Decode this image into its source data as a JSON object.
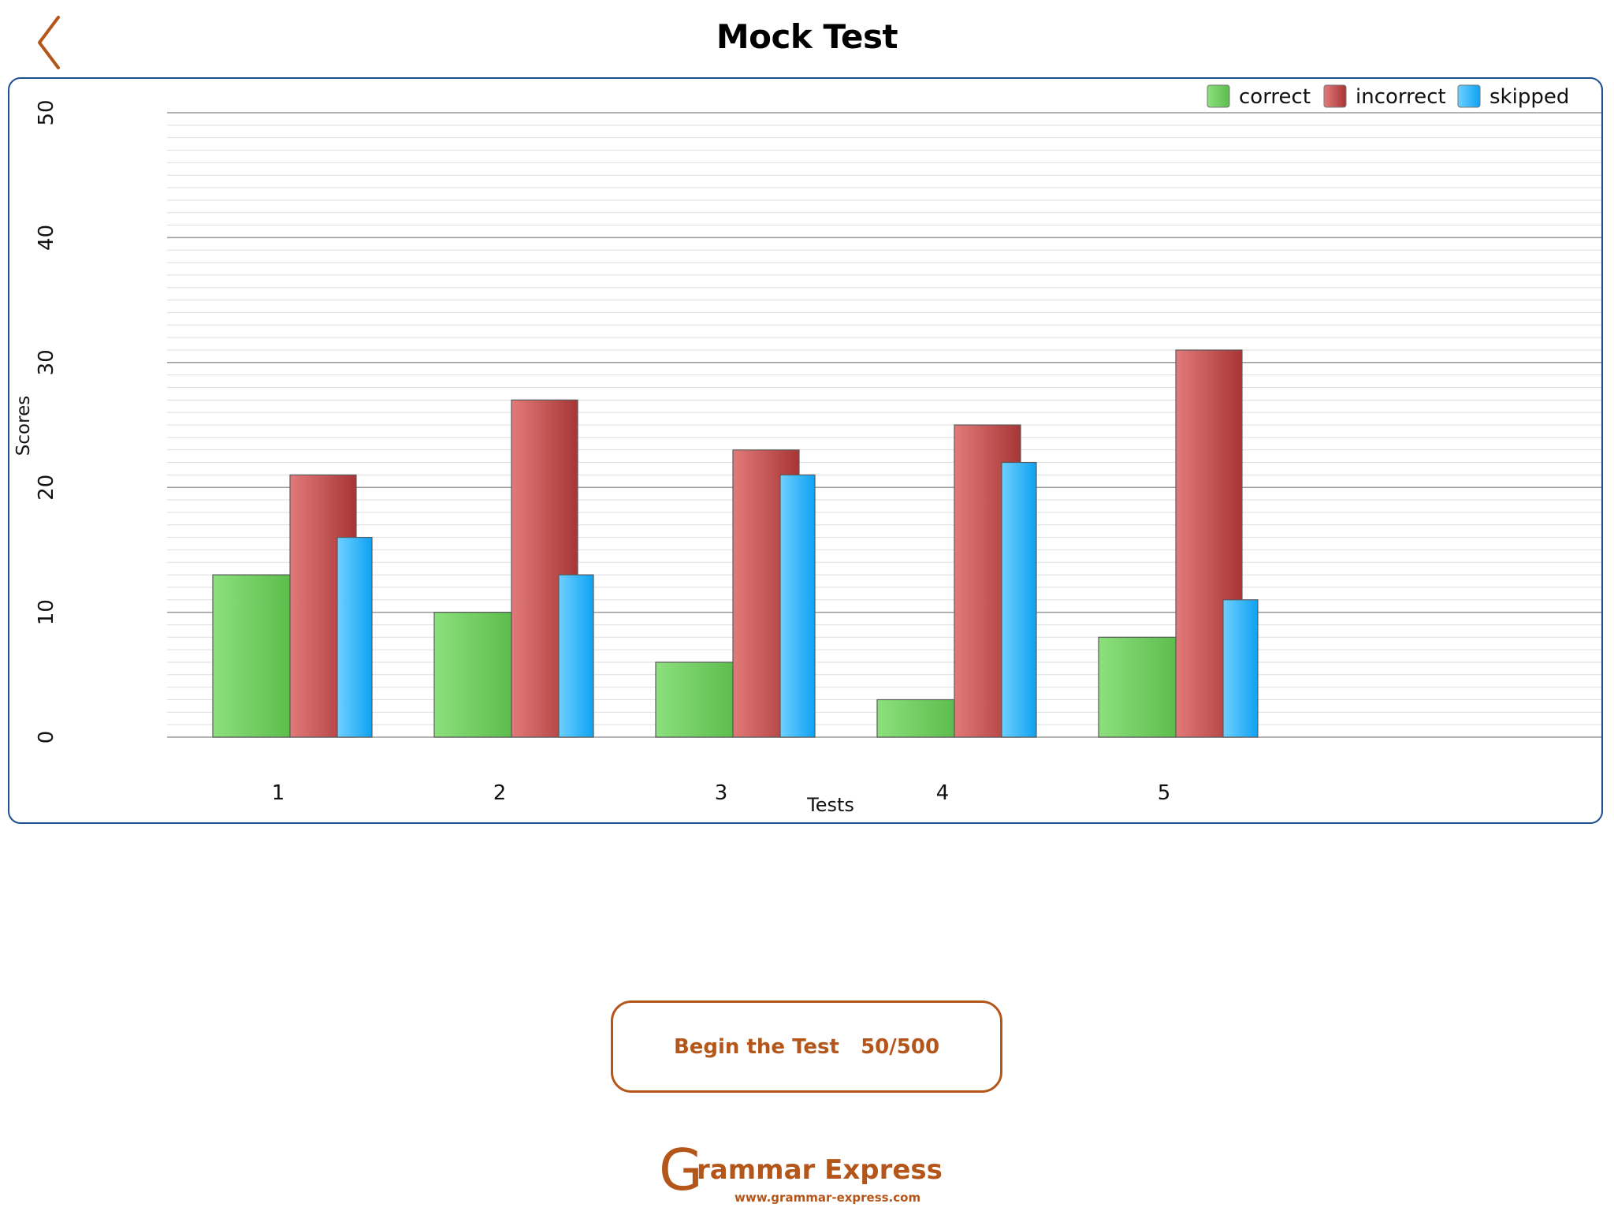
{
  "header": {
    "title": "Mock Test",
    "back_icon": "chevron-left-icon"
  },
  "chart_data": {
    "type": "bar",
    "title": "",
    "xlabel": "Tests",
    "ylabel": "Scores",
    "categories": [
      "1",
      "2",
      "3",
      "4",
      "5"
    ],
    "ylim": [
      0,
      50
    ],
    "yticks": [
      "0",
      "10",
      "20",
      "30",
      "40",
      "50"
    ],
    "grid": true,
    "legend_position": "top-right",
    "series": [
      {
        "name": "correct",
        "color": "#6cc95a",
        "values": [
          13,
          10,
          6,
          3,
          8
        ]
      },
      {
        "name": "incorrect",
        "color": "#c44a4a",
        "values": [
          21,
          27,
          23,
          25,
          31
        ]
      },
      {
        "name": "skipped",
        "color": "#1aaaf5",
        "values": [
          16,
          13,
          21,
          22,
          11
        ]
      }
    ]
  },
  "actions": {
    "begin_label": "Begin the Test",
    "begin_progress": "50/500"
  },
  "footer": {
    "logo_initial": "G",
    "logo_rest": "rammar Express",
    "logo_url": "www.grammar-express.com"
  },
  "colors": {
    "accent": "#b4561a",
    "panel_border": "#1d4f91"
  }
}
